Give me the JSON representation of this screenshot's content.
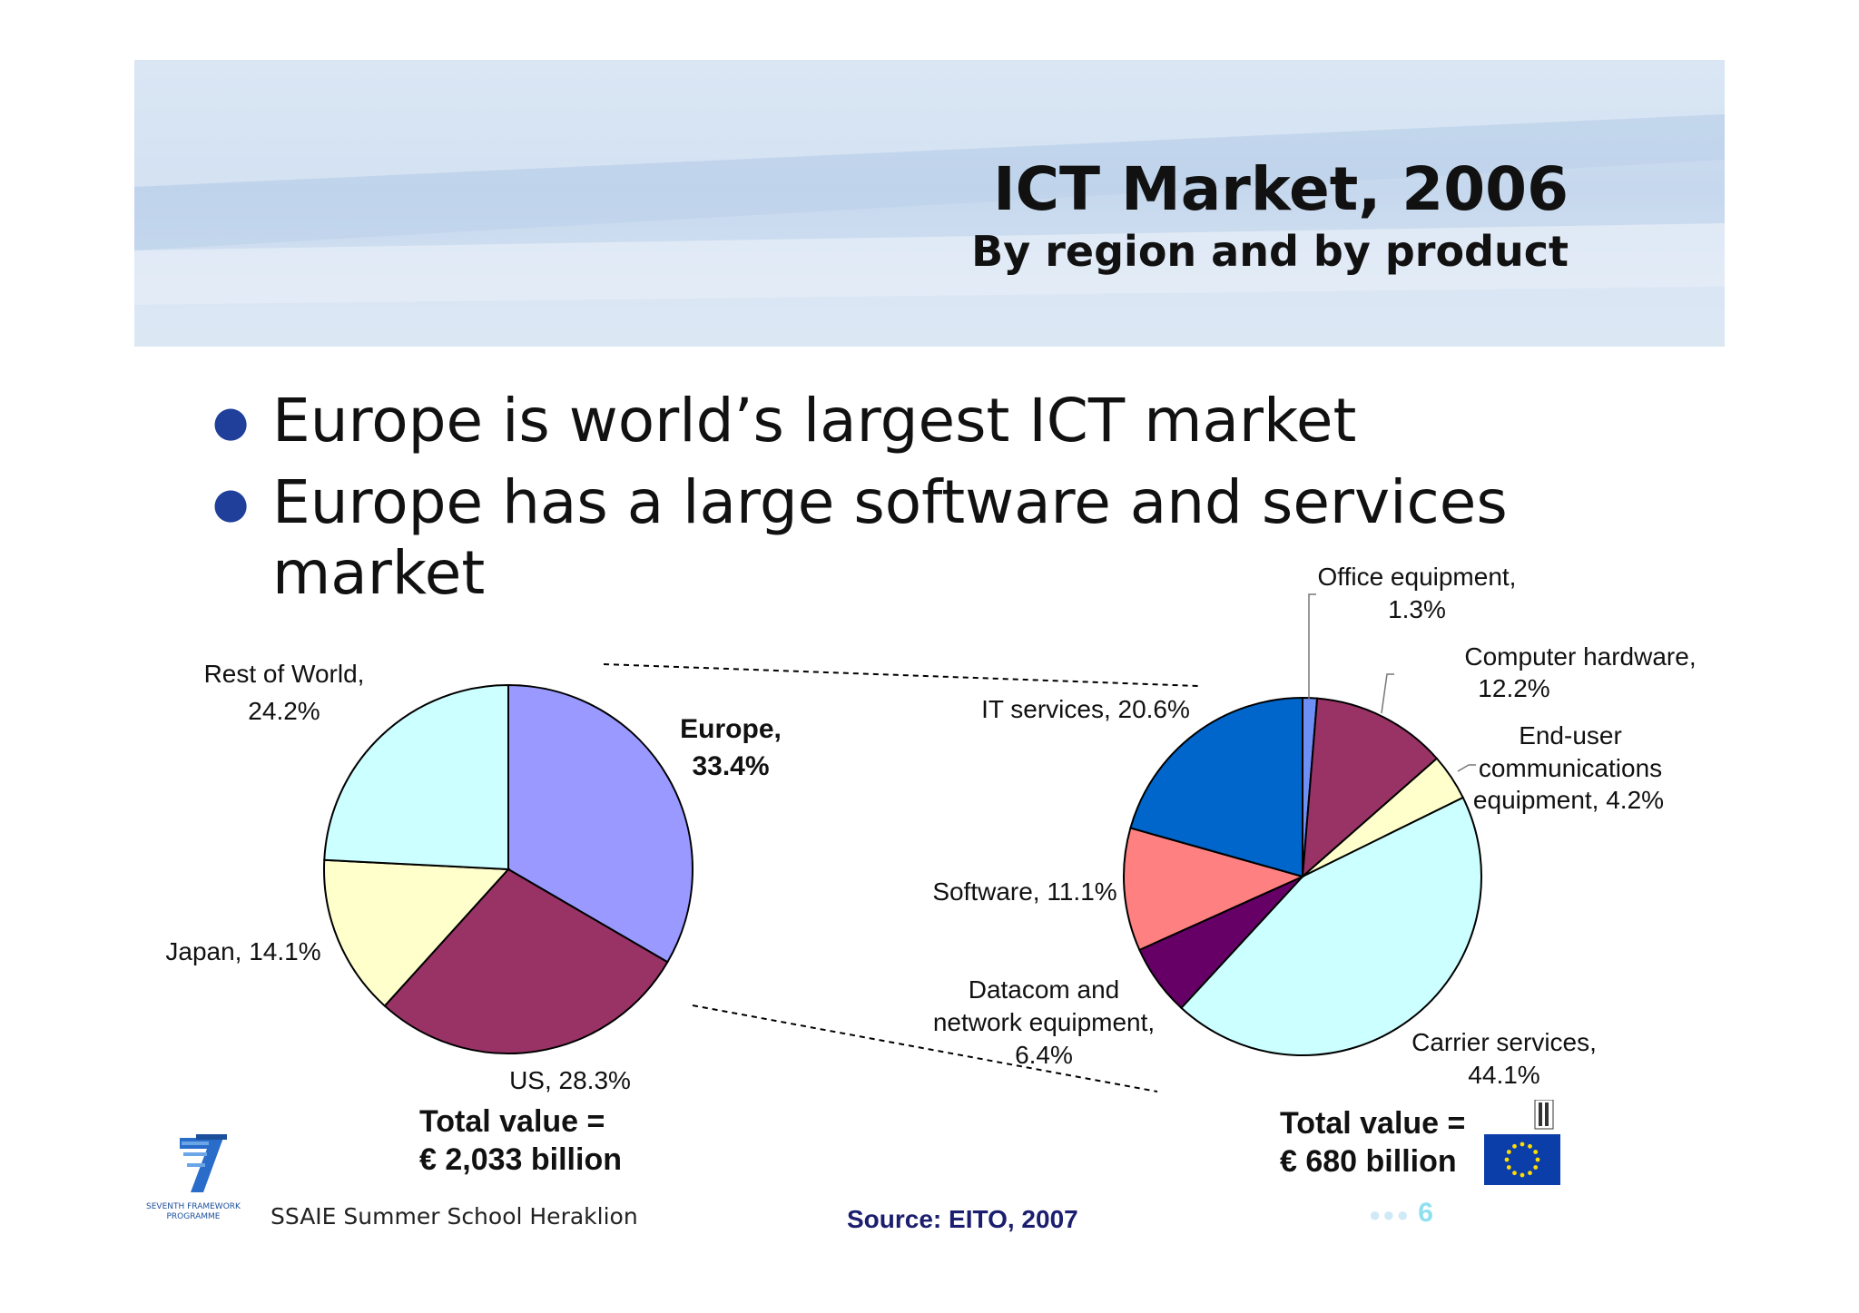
{
  "header": {
    "title": "ICT Market, 2006",
    "subtitle": "By region and by product"
  },
  "bullets": [
    "Europe is world’s largest ICT market",
    "Europe has a large software and services market"
  ],
  "chart_data": [
    {
      "type": "pie",
      "slices": [
        {
          "name": "Europe",
          "value": 33.4,
          "label": "Europe,",
          "value_label": "33.4%",
          "color": "#9999ff"
        },
        {
          "name": "US",
          "value": 28.3,
          "label": "US, 28.3%",
          "color": "#993366"
        },
        {
          "name": "Japan",
          "value": 14.1,
          "label": "Japan, 14.1%",
          "color": "#ffffcc"
        },
        {
          "name": "Rest of World",
          "value": 24.2,
          "label": "Rest of World,",
          "value_label": "24.2%",
          "color": "#ccffff"
        }
      ],
      "total_line1": "Total value =",
      "total_line2": "€ 2,033 billion"
    },
    {
      "type": "pie",
      "slices": [
        {
          "name": "Office equipment",
          "value": 1.3,
          "label": "Office equipment,",
          "value_label": "1.3%",
          "color": "#6e8ff5"
        },
        {
          "name": "Computer hardware",
          "value": 12.2,
          "label": "Computer hardware,",
          "value_label": "12.2%",
          "color": "#993366"
        },
        {
          "name": "End-user communications equipment",
          "value": 4.2,
          "label": "End-user",
          "label2": "communications",
          "value_label": "equipment, 4.2%",
          "color": "#ffffcc"
        },
        {
          "name": "Carrier services",
          "value": 44.1,
          "label": "Carrier services,",
          "value_label": "44.1%",
          "color": "#ccffff"
        },
        {
          "name": "Datacom and network equipment",
          "value": 6.4,
          "label": "Datacom and",
          "label2": "network equipment,",
          "value_label": "6.4%",
          "color": "#660066"
        },
        {
          "name": "Software",
          "value": 11.1,
          "label": "Software, 11.1%",
          "color": "#ff8080"
        },
        {
          "name": "IT services",
          "value": 20.6,
          "label": "IT services, 20.6%",
          "color": "#0066cc"
        }
      ],
      "total_line1": "Total value =",
      "total_line2": "€ 680 billion"
    }
  ],
  "footer": {
    "event": "SSAIE Summer School Heraklion",
    "source": "Source: EITO, 2007",
    "page_number": "6",
    "logo_text_line1": "SEVENTH FRAMEWORK",
    "logo_text_line2": "PROGRAMME"
  },
  "colors": {
    "bullet": "#1f3f9a",
    "source": "#1b1e6e",
    "page_number": "#8fe0ef",
    "eu_flag": "#0b3ea8",
    "eu_stars": "#ffdd00"
  }
}
